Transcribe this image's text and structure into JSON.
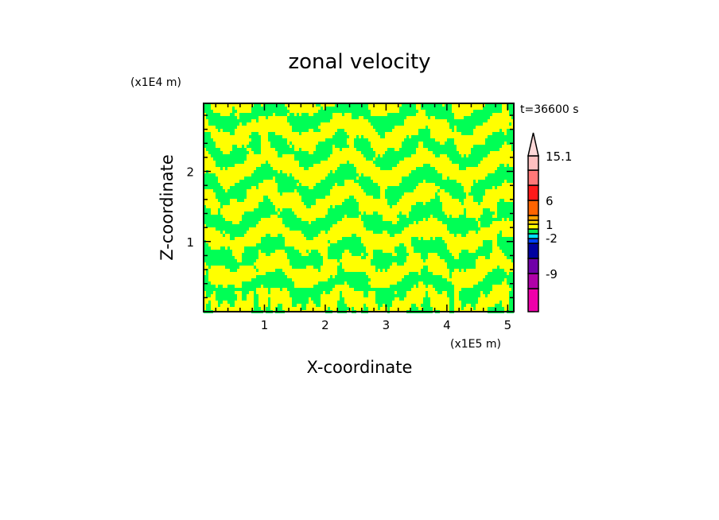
{
  "chart_data": {
    "type": "heatmap",
    "title": "zonal velocity",
    "xlabel": "X-coordinate",
    "ylabel": "Z-coordinate",
    "x_unit": "(x1E5 m)",
    "y_unit": "(x1E4 m)",
    "time_label": "t=36600 s",
    "xlim": [
      0,
      5.1
    ],
    "ylim": [
      0,
      2.97
    ],
    "x_ticks": [
      "1",
      "2",
      "3",
      "4",
      "5"
    ],
    "x_tick_values": [
      1,
      2,
      3,
      4,
      5
    ],
    "y_ticks": [
      "1",
      "2"
    ],
    "y_tick_values": [
      1,
      2
    ],
    "colorbar": {
      "labels": [
        "15.1",
        "6",
        "1",
        "-2",
        "-9"
      ],
      "label_values": [
        15.1,
        6,
        1,
        -2,
        -9
      ],
      "levels": [
        -15,
        -12,
        -9,
        -6,
        -3,
        -2,
        -1,
        0,
        1,
        2,
        3,
        6,
        9,
        12,
        15.1
      ],
      "colors": [
        "#ee00aa",
        "#b000a8",
        "#7000a8",
        "#0000a0",
        "#0040ff",
        "#00e0ff",
        "#00ee50",
        "#ffff00",
        "#ffd000",
        "#ffa000",
        "#ff6400",
        "#ff1a1a",
        "#ff7878",
        "#ffc0c0"
      ],
      "overflow_color": "#ffd9d9"
    },
    "colors": {
      "positive_small": "#ffff00",
      "negative_small": "#00ff55"
    }
  }
}
